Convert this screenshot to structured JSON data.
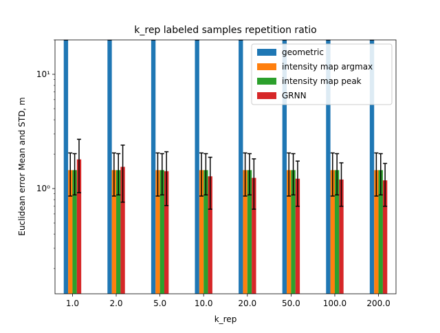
{
  "chart_data": {
    "type": "bar",
    "title": "k_rep labeled samples repetition ratio",
    "xlabel": "k_rep",
    "ylabel": "Euclidean error Mean and STD, m",
    "yscale": "log",
    "ylim": [
      0.12,
      20
    ],
    "grid": false,
    "legend_position": "top-right",
    "categories": [
      "1.0",
      "2.0",
      "5.0",
      "10.0",
      "20.0",
      "50.0",
      "100.0",
      "200.0"
    ],
    "y_tick_labels": [
      {
        "value": 1,
        "label": "10⁰"
      },
      {
        "value": 10,
        "label": "10¹"
      }
    ],
    "series": [
      {
        "name": "geometric",
        "color": "#1f77b4",
        "values": [
          20,
          20,
          20,
          20,
          20,
          20,
          20,
          20
        ],
        "err_low": [
          20,
          20,
          20,
          20,
          20,
          20,
          20,
          20
        ],
        "err_high": [
          20,
          20,
          20,
          20,
          20,
          20,
          20,
          20
        ]
      },
      {
        "name": "intensity map argmax",
        "color": "#ff7f0e",
        "values": [
          1.45,
          1.45,
          1.45,
          1.45,
          1.45,
          1.45,
          1.45,
          1.45
        ],
        "err_low": [
          0.86,
          0.86,
          0.86,
          0.86,
          0.86,
          0.86,
          0.86,
          0.86
        ],
        "err_high": [
          2.05,
          2.05,
          2.05,
          2.05,
          2.05,
          2.05,
          2.05,
          2.05
        ]
      },
      {
        "name": "intensity map peak",
        "color": "#2ca02c",
        "values": [
          1.45,
          1.45,
          1.45,
          1.45,
          1.45,
          1.45,
          1.45,
          1.45
        ],
        "err_low": [
          0.88,
          0.88,
          0.88,
          0.88,
          0.88,
          0.88,
          0.88,
          0.88
        ],
        "err_high": [
          2.02,
          2.02,
          2.02,
          2.02,
          2.02,
          2.02,
          2.02,
          2.02
        ]
      },
      {
        "name": "GRNN",
        "color": "#d62728",
        "values": [
          1.8,
          1.55,
          1.42,
          1.28,
          1.24,
          1.22,
          1.2,
          1.18
        ],
        "err_low": [
          0.92,
          0.76,
          0.71,
          0.66,
          0.66,
          0.7,
          0.7,
          0.7
        ],
        "err_high": [
          2.7,
          2.4,
          2.1,
          1.88,
          1.82,
          1.74,
          1.68,
          1.66
        ]
      }
    ]
  }
}
